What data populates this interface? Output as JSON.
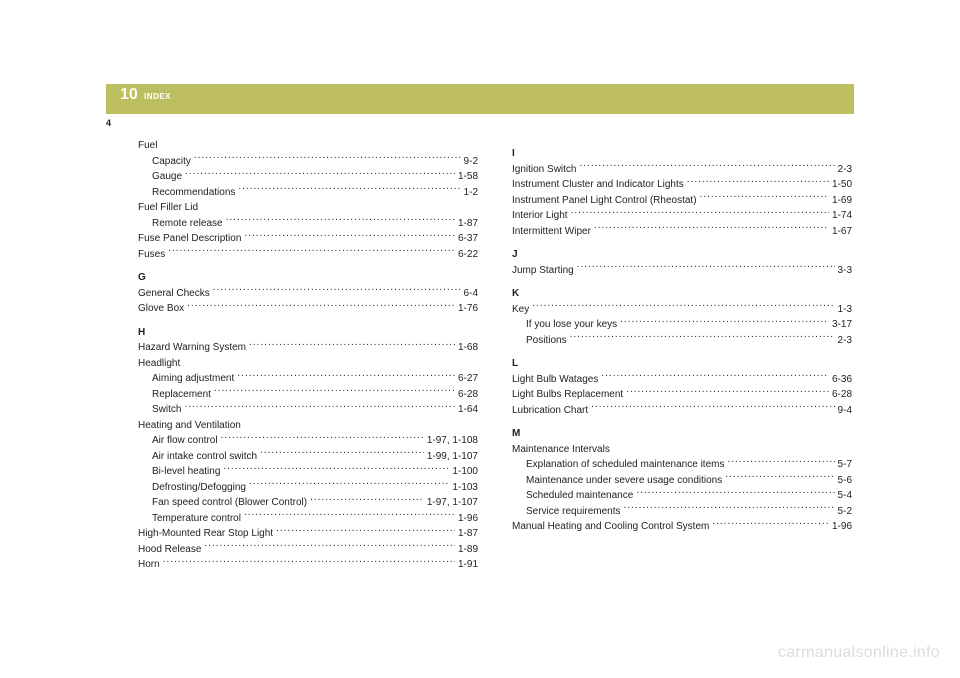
{
  "header": {
    "chapter_number": "10",
    "chapter_label": "INDEX",
    "page_number": "4",
    "bar_color": "#bcbe60"
  },
  "watermark": "carmanualsonline.info",
  "left_column": [
    {
      "type": "group",
      "text": "Fuel"
    },
    {
      "type": "entry",
      "indent": true,
      "label": "Capacity",
      "page": "9-2"
    },
    {
      "type": "entry",
      "indent": true,
      "label": "Gauge",
      "page": "1-58"
    },
    {
      "type": "entry",
      "indent": true,
      "label": "Recommendations",
      "page": "1-2"
    },
    {
      "type": "group",
      "text": "Fuel Filler Lid"
    },
    {
      "type": "entry",
      "indent": true,
      "label": "Remote release",
      "page": "1-87"
    },
    {
      "type": "entry",
      "indent": false,
      "label": "Fuse Panel Description",
      "page": "6-37"
    },
    {
      "type": "entry",
      "indent": false,
      "label": "Fuses",
      "page": "6-22"
    },
    {
      "type": "section",
      "text": "G"
    },
    {
      "type": "entry",
      "indent": false,
      "label": "General Checks",
      "page": "6-4"
    },
    {
      "type": "entry",
      "indent": false,
      "label": "Glove Box",
      "page": "1-76"
    },
    {
      "type": "section",
      "text": "H"
    },
    {
      "type": "entry",
      "indent": false,
      "label": "Hazard Warning System",
      "page": "1-68"
    },
    {
      "type": "group",
      "text": "Headlight"
    },
    {
      "type": "entry",
      "indent": true,
      "label": "Aiming adjustment",
      "page": "6-27"
    },
    {
      "type": "entry",
      "indent": true,
      "label": "Replacement",
      "page": "6-28"
    },
    {
      "type": "entry",
      "indent": true,
      "label": "Switch",
      "page": "1-64"
    },
    {
      "type": "group",
      "text": "Heating and Ventilation"
    },
    {
      "type": "entry",
      "indent": true,
      "label": "Air flow control",
      "page": "1-97, 1-108"
    },
    {
      "type": "entry",
      "indent": true,
      "label": "Air intake control switch",
      "page": "1-99, 1-107"
    },
    {
      "type": "entry",
      "indent": true,
      "label": "Bi-level heating",
      "page": "1-100"
    },
    {
      "type": "entry",
      "indent": true,
      "label": "Defrosting/Defogging",
      "page": "1-103"
    },
    {
      "type": "entry",
      "indent": true,
      "label": "Fan speed control (Blower Control)",
      "page": "1-97, 1-107"
    },
    {
      "type": "entry",
      "indent": true,
      "label": "Temperature control",
      "page": "1-96"
    },
    {
      "type": "entry",
      "indent": false,
      "label": "High-Mounted Rear Stop Light",
      "page": "1-87"
    },
    {
      "type": "entry",
      "indent": false,
      "label": "Hood Release",
      "page": "1-89"
    },
    {
      "type": "entry",
      "indent": false,
      "label": "Horn",
      "page": "1-91"
    }
  ],
  "right_column": [
    {
      "type": "section",
      "text": "I"
    },
    {
      "type": "entry",
      "indent": false,
      "label": "Ignition Switch",
      "page": "2-3"
    },
    {
      "type": "entry",
      "indent": false,
      "label": "Instrument Cluster and Indicator Lights",
      "page": "1-50"
    },
    {
      "type": "entry",
      "indent": false,
      "label": "Instrument Panel Light Control (Rheostat)",
      "page": "1-69"
    },
    {
      "type": "entry",
      "indent": false,
      "label": "Interior Light",
      "page": "1-74"
    },
    {
      "type": "entry",
      "indent": false,
      "label": "Intermittent Wiper",
      "page": "1-67"
    },
    {
      "type": "section",
      "text": "J"
    },
    {
      "type": "entry",
      "indent": false,
      "label": "Jump Starting",
      "page": "3-3"
    },
    {
      "type": "section",
      "text": "K"
    },
    {
      "type": "entry",
      "indent": false,
      "label": "Key",
      "page": "1-3"
    },
    {
      "type": "entry",
      "indent": true,
      "label": "If you lose your keys",
      "page": "3-17"
    },
    {
      "type": "entry",
      "indent": true,
      "label": "Positions",
      "page": "2-3"
    },
    {
      "type": "section",
      "text": "L"
    },
    {
      "type": "entry",
      "indent": false,
      "label": "Light Bulb Watages",
      "page": "6-36"
    },
    {
      "type": "entry",
      "indent": false,
      "label": "Light Bulbs Replacement",
      "page": "6-28"
    },
    {
      "type": "entry",
      "indent": false,
      "label": "Lubrication Chart",
      "page": "9-4"
    },
    {
      "type": "section",
      "text": "M"
    },
    {
      "type": "group",
      "text": "Maintenance Intervals"
    },
    {
      "type": "entry",
      "indent": true,
      "label": "Explanation of scheduled maintenance items",
      "page": "5-7"
    },
    {
      "type": "entry",
      "indent": true,
      "label": "Maintenance under severe usage conditions",
      "page": "5-6"
    },
    {
      "type": "entry",
      "indent": true,
      "label": "Scheduled maintenance",
      "page": "5-4"
    },
    {
      "type": "entry",
      "indent": true,
      "label": "Service requirements",
      "page": "5-2"
    },
    {
      "type": "entry",
      "indent": false,
      "label": "Manual Heating and Cooling Control System",
      "page": "1-96"
    }
  ]
}
